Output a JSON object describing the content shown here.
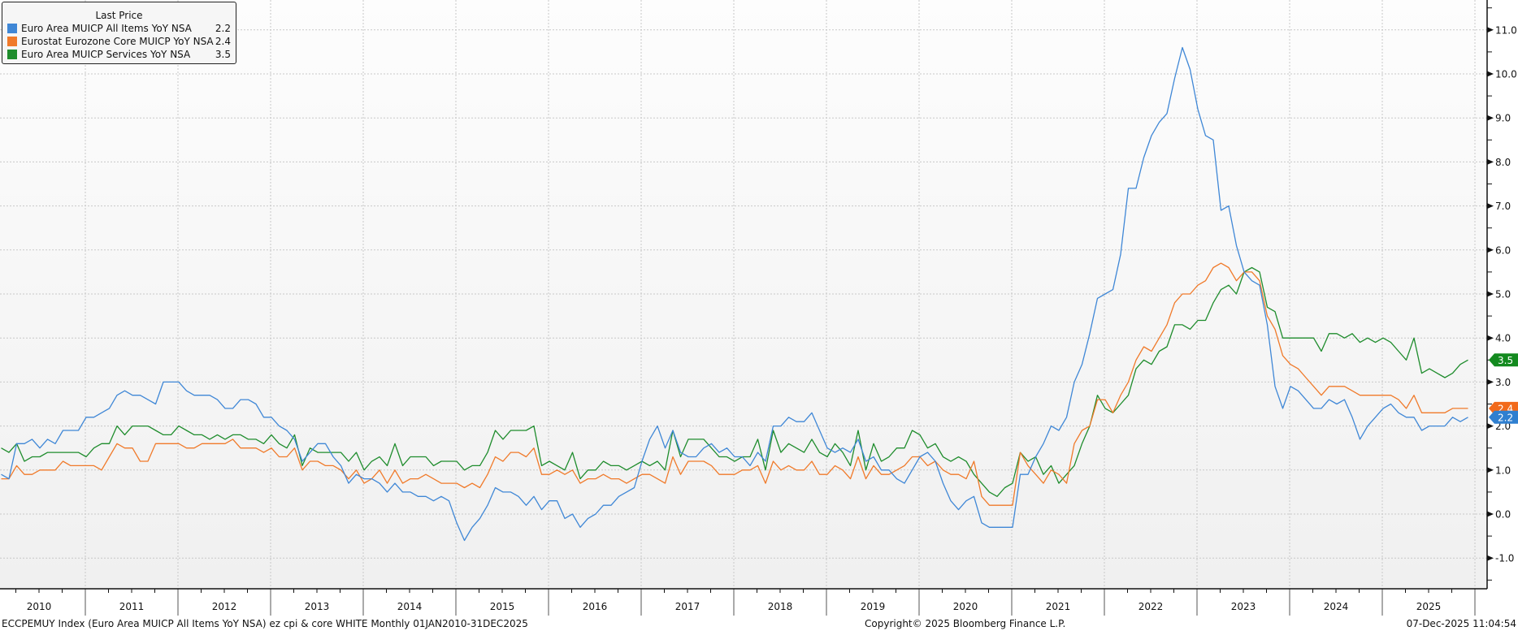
{
  "legend": {
    "title": "Last Price",
    "items": [
      {
        "name": "Euro Area MUICP All Items YoY NSA",
        "value": "2.2",
        "color": "#3f87d6"
      },
      {
        "name": "Eurostat Eurozone Core MUICP YoY NSA",
        "value": "2.4",
        "color": "#f07a2a"
      },
      {
        "name": "Euro Area MUICP Services YoY NSA",
        "value": "3.5",
        "color": "#1e8c2c"
      }
    ]
  },
  "footer": {
    "left": "ECCPEMUY Index (Euro Area MUICP All Items YoY NSA) ez cpi & core WHITE Monthly 01JAN2010-31DEC2025",
    "center": "Copyright© 2025 Bloomberg Finance L.P.",
    "right": "07-Dec-2025 11:04:54"
  },
  "chart_data": {
    "type": "line",
    "frequency": "monthly",
    "x_range": [
      "2010-01",
      "2025-11"
    ],
    "x_tick_labels": [
      "2010",
      "2011",
      "2012",
      "2013",
      "2014",
      "2015",
      "2016",
      "2017",
      "2018",
      "2019",
      "2020",
      "2021",
      "2022",
      "2023",
      "2024",
      "2025"
    ],
    "ylim": [
      -1.5,
      11.5
    ],
    "y_tick_labels": [
      "-1.0",
      "0.0",
      "1.0",
      "2.0",
      "3.0",
      "4.0",
      "5.0",
      "6.0",
      "7.0",
      "8.0",
      "9.0",
      "10.0",
      "11.0"
    ],
    "y_axis_side": "right",
    "grid": true,
    "legend_placement": "top-left",
    "series": [
      {
        "name": "Euro Area MUICP All Items YoY NSA",
        "color": "#3f87d6",
        "last_value": "2.2",
        "tag_color": "#2f7fd0",
        "values": [
          0.9,
          0.8,
          1.6,
          1.6,
          1.7,
          1.5,
          1.7,
          1.6,
          1.9,
          1.9,
          1.9,
          2.2,
          2.2,
          2.3,
          2.4,
          2.7,
          2.8,
          2.7,
          2.7,
          2.6,
          2.5,
          3.0,
          3.0,
          3.0,
          2.8,
          2.7,
          2.7,
          2.7,
          2.6,
          2.4,
          2.4,
          2.6,
          2.6,
          2.5,
          2.2,
          2.2,
          2.0,
          1.9,
          1.7,
          1.2,
          1.4,
          1.6,
          1.6,
          1.3,
          1.1,
          0.7,
          0.9,
          0.8,
          0.8,
          0.7,
          0.5,
          0.7,
          0.5,
          0.5,
          0.4,
          0.4,
          0.3,
          0.4,
          0.3,
          -0.2,
          -0.6,
          -0.3,
          -0.1,
          0.2,
          0.6,
          0.5,
          0.5,
          0.4,
          0.2,
          0.4,
          0.1,
          0.3,
          0.3,
          -0.1,
          0.0,
          -0.3,
          -0.1,
          0.0,
          0.2,
          0.2,
          0.4,
          0.5,
          0.6,
          1.2,
          1.7,
          2.0,
          1.5,
          1.9,
          1.4,
          1.3,
          1.3,
          1.5,
          1.6,
          1.4,
          1.5,
          1.3,
          1.3,
          1.1,
          1.4,
          1.2,
          2.0,
          2.0,
          2.2,
          2.1,
          2.1,
          2.3,
          1.9,
          1.5,
          1.4,
          1.5,
          1.4,
          1.7,
          1.2,
          1.3,
          1.0,
          1.0,
          0.8,
          0.7,
          1.0,
          1.3,
          1.4,
          1.2,
          0.7,
          0.3,
          0.1,
          0.3,
          0.4,
          -0.2,
          -0.3,
          -0.3,
          -0.3,
          -0.3,
          0.9,
          0.9,
          1.3,
          1.6,
          2.0,
          1.9,
          2.2,
          3.0,
          3.4,
          4.1,
          4.9,
          5.0,
          5.1,
          5.9,
          7.4,
          7.4,
          8.1,
          8.6,
          8.9,
          9.1,
          9.9,
          10.6,
          10.1,
          9.2,
          8.6,
          8.5,
          6.9,
          7.0,
          6.1,
          5.5,
          5.3,
          5.2,
          4.3,
          2.9,
          2.4,
          2.9,
          2.8,
          2.6,
          2.4,
          2.4,
          2.6,
          2.5,
          2.6,
          2.2,
          1.7,
          2.0,
          2.2,
          2.4,
          2.5,
          2.3,
          2.2,
          2.2,
          1.9,
          2.0,
          2.0,
          2.0,
          2.2,
          2.1,
          2.2
        ]
      },
      {
        "name": "Eurostat Eurozone Core MUICP YoY NSA",
        "color": "#f07a2a",
        "last_value": "2.4",
        "tag_color": "#f26a1b",
        "values": [
          0.8,
          0.8,
          1.1,
          0.9,
          0.9,
          1.0,
          1.0,
          1.0,
          1.2,
          1.1,
          1.1,
          1.1,
          1.1,
          1.0,
          1.3,
          1.6,
          1.5,
          1.5,
          1.2,
          1.2,
          1.6,
          1.6,
          1.6,
          1.6,
          1.5,
          1.5,
          1.6,
          1.6,
          1.6,
          1.6,
          1.7,
          1.5,
          1.5,
          1.5,
          1.4,
          1.5,
          1.3,
          1.3,
          1.5,
          1.0,
          1.2,
          1.2,
          1.1,
          1.1,
          1.0,
          0.8,
          1.0,
          0.7,
          0.8,
          1.0,
          0.7,
          1.0,
          0.7,
          0.8,
          0.8,
          0.9,
          0.8,
          0.7,
          0.7,
          0.7,
          0.6,
          0.7,
          0.6,
          0.9,
          1.3,
          1.2,
          1.4,
          1.4,
          1.3,
          1.5,
          0.9,
          0.9,
          1.0,
          0.9,
          1.0,
          0.7,
          0.8,
          0.8,
          0.9,
          0.8,
          0.8,
          0.7,
          0.8,
          0.9,
          0.9,
          0.8,
          0.7,
          1.3,
          0.9,
          1.2,
          1.2,
          1.2,
          1.1,
          0.9,
          0.9,
          0.9,
          1.0,
          1.0,
          1.1,
          0.7,
          1.2,
          1.0,
          1.1,
          1.0,
          1.0,
          1.2,
          0.9,
          0.9,
          1.1,
          1.0,
          0.8,
          1.3,
          0.8,
          1.1,
          0.9,
          0.9,
          1.0,
          1.1,
          1.3,
          1.3,
          1.1,
          1.2,
          1.0,
          0.9,
          0.9,
          0.8,
          1.2,
          0.4,
          0.2,
          0.2,
          0.2,
          0.2,
          1.4,
          1.1,
          0.9,
          0.7,
          1.0,
          0.9,
          0.7,
          1.6,
          1.9,
          2.0,
          2.6,
          2.6,
          2.3,
          2.7,
          3.0,
          3.5,
          3.8,
          3.7,
          4.0,
          4.3,
          4.8,
          5.0,
          5.0,
          5.2,
          5.3,
          5.6,
          5.7,
          5.6,
          5.3,
          5.5,
          5.5,
          5.3,
          4.5,
          4.2,
          3.6,
          3.4,
          3.3,
          3.1,
          2.9,
          2.7,
          2.9,
          2.9,
          2.9,
          2.8,
          2.7,
          2.7,
          2.7,
          2.7,
          2.7,
          2.6,
          2.4,
          2.7,
          2.3,
          2.3,
          2.3,
          2.3,
          2.4,
          2.4,
          2.4
        ]
      },
      {
        "name": "Euro Area MUICP Services YoY NSA",
        "color": "#1e8c2c",
        "last_value": "3.5",
        "tag_color": "#138a1f",
        "values": [
          1.5,
          1.4,
          1.6,
          1.2,
          1.3,
          1.3,
          1.4,
          1.4,
          1.4,
          1.4,
          1.4,
          1.3,
          1.5,
          1.6,
          1.6,
          2.0,
          1.8,
          2.0,
          2.0,
          2.0,
          1.9,
          1.8,
          1.8,
          2.0,
          1.9,
          1.8,
          1.8,
          1.7,
          1.8,
          1.7,
          1.8,
          1.8,
          1.7,
          1.7,
          1.6,
          1.8,
          1.6,
          1.5,
          1.8,
          1.1,
          1.5,
          1.4,
          1.4,
          1.4,
          1.4,
          1.2,
          1.4,
          1.0,
          1.2,
          1.3,
          1.1,
          1.6,
          1.1,
          1.3,
          1.3,
          1.3,
          1.1,
          1.2,
          1.2,
          1.2,
          1.0,
          1.1,
          1.1,
          1.4,
          1.9,
          1.7,
          1.9,
          1.9,
          1.9,
          2.0,
          1.1,
          1.2,
          1.1,
          1.0,
          1.4,
          0.8,
          1.0,
          1.0,
          1.2,
          1.1,
          1.1,
          1.0,
          1.1,
          1.2,
          1.1,
          1.2,
          1.0,
          1.9,
          1.3,
          1.7,
          1.7,
          1.7,
          1.5,
          1.3,
          1.3,
          1.2,
          1.3,
          1.3,
          1.7,
          1.0,
          1.9,
          1.4,
          1.6,
          1.5,
          1.4,
          1.7,
          1.4,
          1.3,
          1.6,
          1.4,
          1.1,
          1.9,
          1.0,
          1.6,
          1.2,
          1.3,
          1.5,
          1.5,
          1.9,
          1.8,
          1.5,
          1.6,
          1.3,
          1.2,
          1.3,
          1.2,
          0.9,
          0.7,
          0.5,
          0.4,
          0.6,
          0.7,
          1.4,
          1.2,
          1.3,
          0.9,
          1.1,
          0.7,
          0.9,
          1.1,
          1.6,
          2.0,
          2.7,
          2.4,
          2.3,
          2.5,
          2.7,
          3.3,
          3.5,
          3.4,
          3.7,
          3.8,
          4.3,
          4.3,
          4.2,
          4.4,
          4.4,
          4.8,
          5.1,
          5.2,
          5.0,
          5.5,
          5.6,
          5.5,
          4.7,
          4.6,
          4.0,
          4.0,
          4.0,
          4.0,
          4.0,
          3.7,
          4.1,
          4.1,
          4.0,
          4.1,
          3.9,
          4.0,
          3.9,
          4.0,
          3.9,
          3.7,
          3.5,
          4.0,
          3.2,
          3.3,
          3.2,
          3.1,
          3.2,
          3.4,
          3.5
        ]
      }
    ]
  }
}
